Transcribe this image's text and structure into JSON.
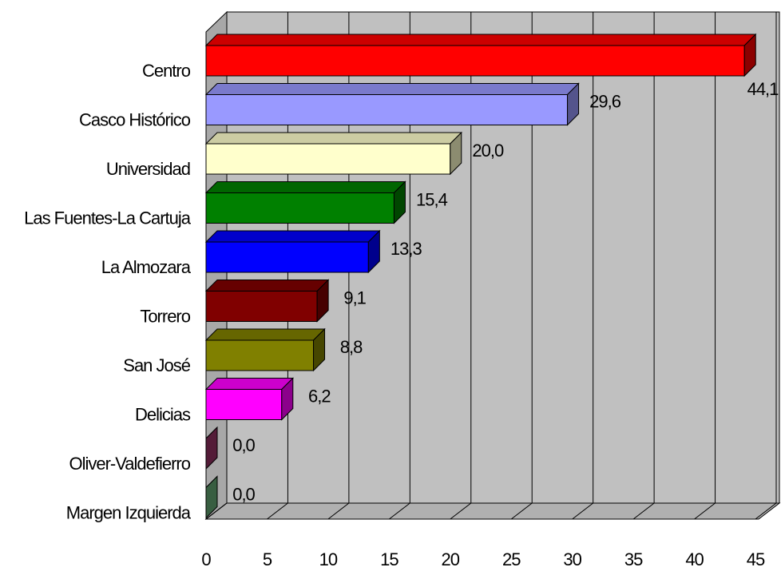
{
  "chart_data": {
    "type": "bar3d_horizontal",
    "categories": [
      "Centro",
      "Casco Histórico",
      "Universidad",
      "Las Fuentes-La Cartuja",
      "La Almozara",
      "Torrero",
      "San José",
      "Delicias",
      "Oliver-Valdefierro",
      "Margen Izquierda"
    ],
    "values": [
      44.1,
      29.6,
      20.0,
      15.4,
      13.3,
      9.1,
      8.8,
      6.2,
      0.0,
      0.0
    ],
    "value_labels": [
      "44,1",
      "29,6",
      "20,0",
      "15,4",
      "13,3",
      "9,1",
      "8,8",
      "6,2",
      "0,0",
      "0,0"
    ],
    "colors": [
      "#ff0000",
      "#9999ff",
      "#ffffcc",
      "#008000",
      "#0000ff",
      "#800000",
      "#808000",
      "#ff00ff",
      "#993366",
      "#66aa77"
    ],
    "xlim": [
      0,
      45
    ],
    "xticks": [
      0,
      5,
      10,
      15,
      20,
      25,
      30,
      35,
      40,
      45
    ],
    "grid": true
  }
}
